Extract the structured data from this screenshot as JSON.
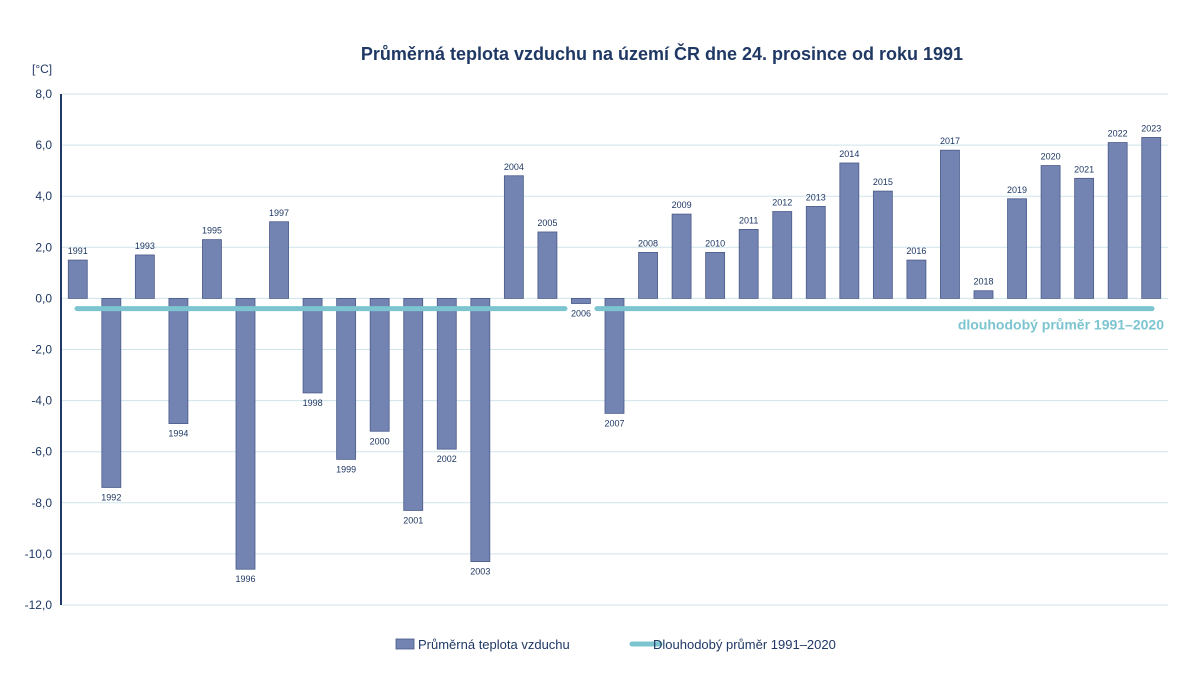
{
  "chart_data": {
    "type": "bar",
    "title": "Průměrná teplota vzduchu na území ČR dne 24. prosince od roku 1991",
    "ylabel": "[°C]",
    "ylim": [
      -12,
      8
    ],
    "yticks": [
      "8,0",
      "6,0",
      "4,0",
      "2,0",
      "0,0",
      "-2,0",
      "-4,0",
      "-6,0",
      "-8,0",
      "-10,0",
      "-12,0"
    ],
    "categories": [
      "1991",
      "1992",
      "1993",
      "1994",
      "1995",
      "1996",
      "1997",
      "1998",
      "1999",
      "2000",
      "2001",
      "2002",
      "2003",
      "2004",
      "2005",
      "2006",
      "2007",
      "2008",
      "2009",
      "2010",
      "2011",
      "2012",
      "2013",
      "2014",
      "2015",
      "2016",
      "2017",
      "2018",
      "2019",
      "2020",
      "2021",
      "2022",
      "2023"
    ],
    "series": [
      {
        "name": "Průměrná teplota vzduchu",
        "type": "bar",
        "color": "#7383b2",
        "values": [
          1.5,
          -7.4,
          1.7,
          -4.9,
          2.3,
          -10.6,
          3.0,
          -3.7,
          -6.3,
          -5.2,
          -8.3,
          -5.9,
          -10.3,
          4.8,
          2.6,
          -0.2,
          -4.5,
          1.8,
          3.3,
          1.8,
          2.7,
          3.4,
          3.6,
          5.3,
          4.2,
          1.5,
          5.8,
          0.3,
          3.9,
          5.2,
          4.7,
          6.1,
          6.3
        ]
      },
      {
        "name": "Dlouhodobý průměr 1991–2020",
        "type": "line",
        "color": "#7cc5d0",
        "value": -0.4
      }
    ],
    "annotation": "dlouhodobý průměr 1991–2020",
    "grid": true,
    "legend": "bottom"
  }
}
